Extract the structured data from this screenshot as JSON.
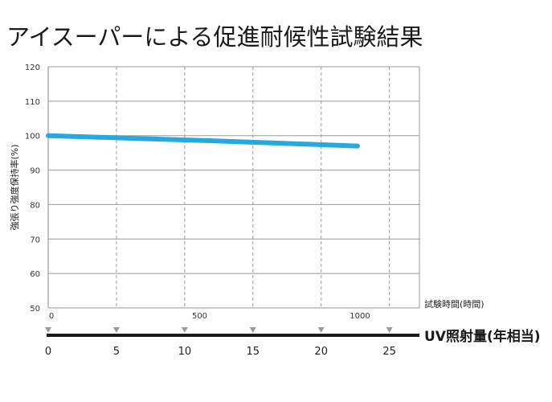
{
  "title": "アイスーパーによる促進耐候性試験結果",
  "chart_data": {
    "type": "line",
    "ylabel": "強張り強度保持率(%)",
    "ylim": [
      50,
      120
    ],
    "yticks": [
      120,
      110,
      100,
      90,
      80,
      70,
      60,
      50
    ],
    "xlabel": "試験時間(時間)",
    "xticks": [
      0,
      500,
      1000
    ],
    "x2label": "UV照射量(年相当)",
    "x2ticks": [
      0,
      5,
      10,
      15,
      20,
      25
    ],
    "grid": true,
    "series": [
      {
        "x": [
          0,
          250,
          500,
          750,
          1000
        ],
        "values": [
          100,
          99.3,
          98.6,
          97.8,
          97.0
        ]
      }
    ],
    "colors": {
      "line": "#29a8e0",
      "grid": "#9a9a9a",
      "frame": "#9a9a9a",
      "bottom_axis": "#1a1a1a"
    }
  }
}
